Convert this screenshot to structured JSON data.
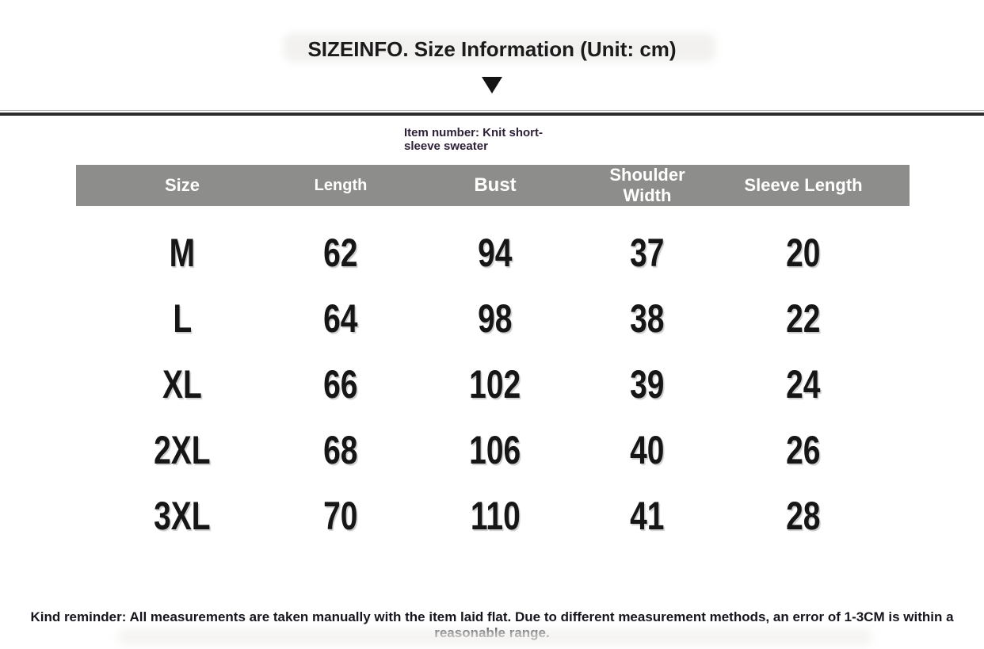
{
  "title": "SIZEINFO. Size Information (Unit: cm)",
  "item_note": {
    "line1": "Item number: Knit short-",
    "line2": "sleeve sweater"
  },
  "chart_data": {
    "type": "table",
    "title": "SIZEINFO. Size Information (Unit: cm)",
    "unit": "cm",
    "columns": [
      "Size",
      "Length",
      "Bust",
      "Shoulder Width",
      "Sleeve Length"
    ],
    "rows": [
      [
        "M",
        62,
        94,
        37,
        20
      ],
      [
        "L",
        64,
        98,
        38,
        22
      ],
      [
        "XL",
        66,
        102,
        39,
        24
      ],
      [
        "2XL",
        68,
        106,
        40,
        26
      ],
      [
        "3XL",
        70,
        110,
        41,
        28
      ]
    ]
  },
  "footer": {
    "reminder": "Kind reminder: All measurements are taken manually with the item laid flat. Due to different measurement methods, an error of 1-3CM is within a reasonable range."
  },
  "colors": {
    "header_bg": "#8d8d8b",
    "header_text": "#ffffff",
    "divider": "#2b2b2b",
    "item_note_text": "#2e2137",
    "body_text": "#161616",
    "background": "#ffffff"
  }
}
